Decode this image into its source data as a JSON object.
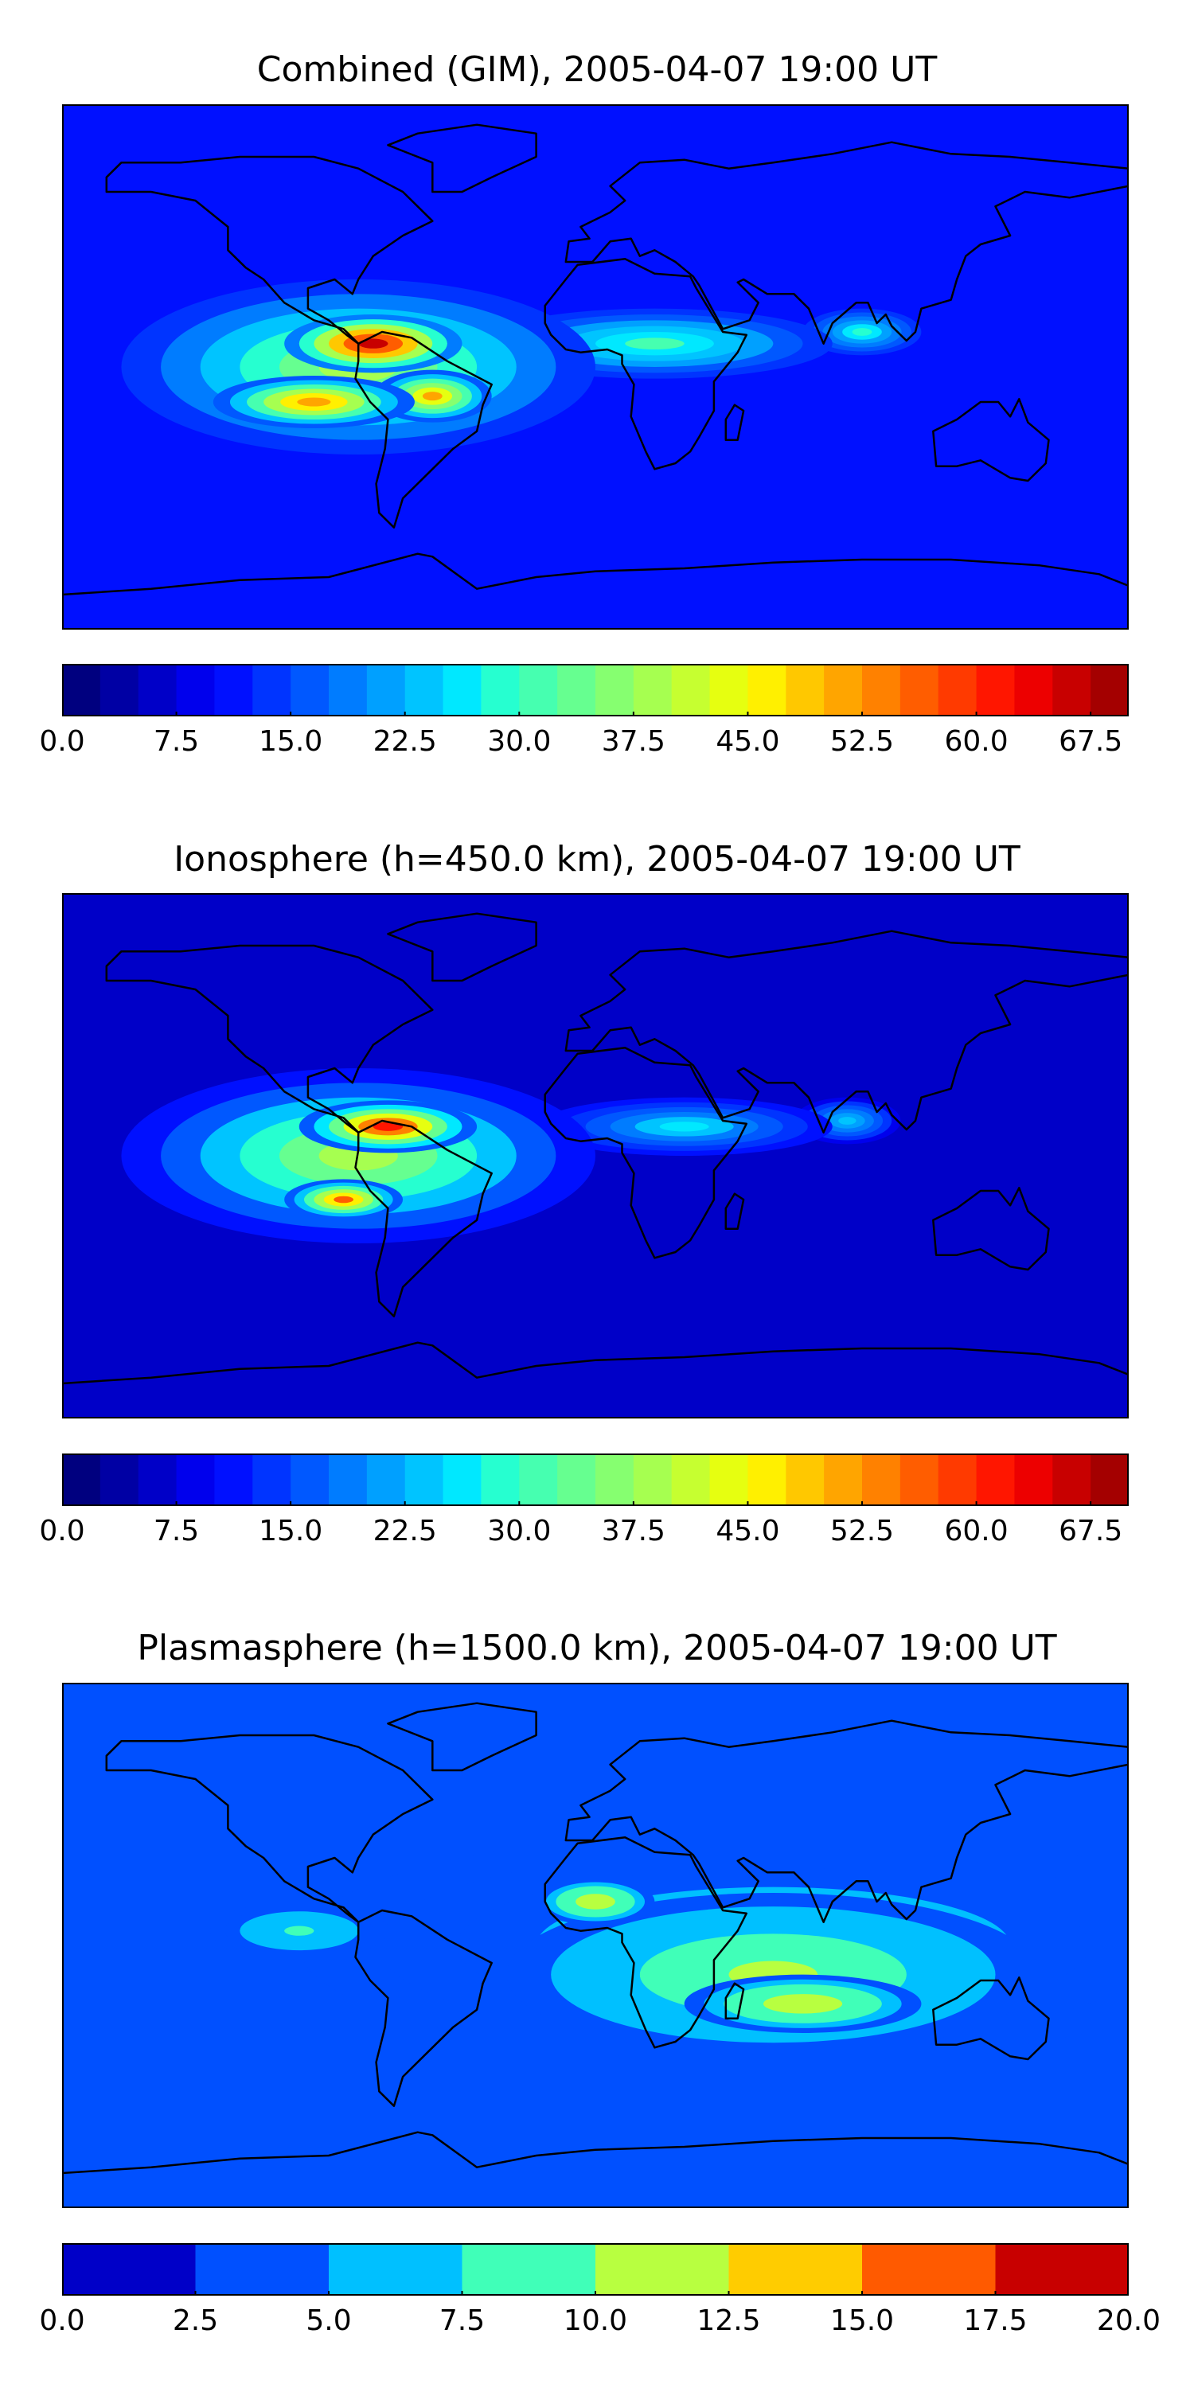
{
  "chart_data": [
    {
      "type": "heatmap",
      "title": "Combined (GIM), 2005-04-07 19:00 UT",
      "colorbar": {
        "range": [
          0.0,
          70.0
        ],
        "levels": 28,
        "tick_labels": [
          "0.0",
          "7.5",
          "15.0",
          "22.5",
          "30.0",
          "37.5",
          "45.0",
          "52.5",
          "60.0",
          "67.5"
        ],
        "tick_values": [
          0.0,
          7.5,
          15.0,
          22.5,
          30.0,
          37.5,
          45.0,
          52.5,
          60.0,
          67.5
        ]
      },
      "features": [
        {
          "lon": -75,
          "lat": 8,
          "value": 67,
          "rx": 30,
          "ry": 10
        },
        {
          "lon": -95,
          "lat": -12,
          "value": 52,
          "rx": 34,
          "ry": 9
        },
        {
          "lon": -55,
          "lat": -10,
          "value": 50,
          "rx": 20,
          "ry": 9
        },
        {
          "lon": -80,
          "lat": 0,
          "value": 38,
          "rx": 80,
          "ry": 30
        },
        {
          "lon": 20,
          "lat": 8,
          "value": 30,
          "rx": 60,
          "ry": 12
        },
        {
          "lon": 90,
          "lat": 12,
          "value": 28,
          "rx": 20,
          "ry": 8
        }
      ],
      "background_value": 10
    },
    {
      "type": "heatmap",
      "title": "Ionosphere  (h=450.0 km), 2005-04-07 19:00 UT",
      "colorbar": {
        "range": [
          0.0,
          70.0
        ],
        "levels": 28,
        "tick_labels": [
          "0.0",
          "7.5",
          "15.0",
          "22.5",
          "30.0",
          "37.5",
          "45.0",
          "52.5",
          "60.0",
          "67.5"
        ],
        "tick_values": [
          0.0,
          7.5,
          15.0,
          22.5,
          30.0,
          37.5,
          45.0,
          52.5,
          60.0,
          67.5
        ]
      },
      "features": [
        {
          "lon": -70,
          "lat": 10,
          "value": 62,
          "rx": 30,
          "ry": 9
        },
        {
          "lon": -85,
          "lat": -15,
          "value": 55,
          "rx": 20,
          "ry": 7
        },
        {
          "lon": -80,
          "lat": 0,
          "value": 38,
          "rx": 80,
          "ry": 30
        },
        {
          "lon": 30,
          "lat": 10,
          "value": 26,
          "rx": 50,
          "ry": 10
        },
        {
          "lon": 85,
          "lat": 12,
          "value": 24,
          "rx": 18,
          "ry": 8
        }
      ],
      "background_value": 7
    },
    {
      "type": "heatmap",
      "title": "Plasmasphere (h=1500.0 km), 2005-04-07 19:00 UT",
      "colorbar": {
        "range": [
          0.0,
          20.0
        ],
        "levels": 8,
        "tick_labels": [
          "0.0",
          "2.5",
          "5.0",
          "7.5",
          "10.0",
          "12.5",
          "15.0",
          "17.5",
          "20.0"
        ],
        "tick_values": [
          0.0,
          2.5,
          5.0,
          7.5,
          10.0,
          12.5,
          15.0,
          17.5,
          20.0
        ]
      },
      "features": [
        {
          "lon": 60,
          "lat": -10,
          "value": 11,
          "rx": 90,
          "ry": 28
        },
        {
          "lon": 0,
          "lat": 15,
          "value": 12,
          "rx": 20,
          "ry": 8
        },
        {
          "lon": 70,
          "lat": -20,
          "value": 12,
          "rx": 40,
          "ry": 10
        },
        {
          "lon": -100,
          "lat": 5,
          "value": 8,
          "rx": 30,
          "ry": 10
        },
        {
          "lon": 60,
          "lat": 0,
          "value": 6,
          "rx": 160,
          "ry": 40
        }
      ],
      "background_value": 3
    }
  ],
  "colors": {
    "jet28": [
      "#00007f",
      "#0000a4",
      "#0000c8",
      "#0000ed",
      "#0010ff",
      "#0034ff",
      "#0058ff",
      "#007cff",
      "#00a0ff",
      "#00c4ff",
      "#00e8ff",
      "#26ffd0",
      "#46ffb0",
      "#66ff90",
      "#86ff70",
      "#a6ff50",
      "#c6ff30",
      "#e6ff10",
      "#fff000",
      "#ffc800",
      "#ffa500",
      "#ff8100",
      "#ff5d00",
      "#ff3a00",
      "#ff1600",
      "#ed0000",
      "#c80000",
      "#a40000"
    ],
    "jet8": [
      "#0000c8",
      "#0050ff",
      "#00c0ff",
      "#40ffb8",
      "#b8ff40",
      "#ffcc00",
      "#ff5a00",
      "#c80000"
    ]
  }
}
